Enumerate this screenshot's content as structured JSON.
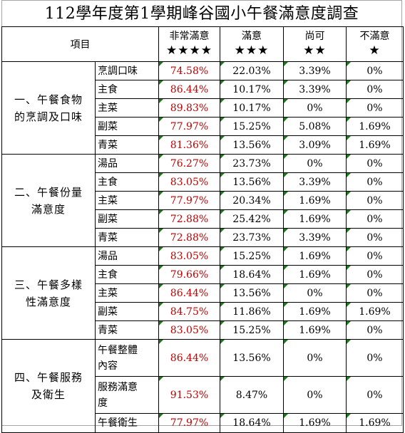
{
  "title": "112學年度第1學期峰谷國小午餐滿意度調查",
  "header": {
    "item_label": "項目",
    "columns": [
      {
        "label": "非常滿意",
        "stars": "★★★★"
      },
      {
        "label": "滿意",
        "stars": "★★★"
      },
      {
        "label": "尚可",
        "stars": "★★"
      },
      {
        "label": "不滿意",
        "stars": "★"
      }
    ]
  },
  "colors": {
    "highlight_value": "#c00000",
    "comment_marker": "#1a7a1a"
  },
  "groups": [
    {
      "name_line1": "一、午餐食物",
      "name_line2": "的烹調及口味",
      "rows": [
        {
          "item": "烹調口味",
          "values": [
            "74.58%",
            "22.03%",
            "3.39%",
            "0%"
          ]
        },
        {
          "item": "主食",
          "values": [
            "86.44%",
            "10.17%",
            "3.39%",
            "0%"
          ]
        },
        {
          "item": "主菜",
          "values": [
            "89.83%",
            "10.17%",
            "0%",
            "0%"
          ]
        },
        {
          "item": "副菜",
          "values": [
            "77.97%",
            "15.25%",
            "5.08%",
            "1.69%"
          ]
        },
        {
          "item": "青菜",
          "values": [
            "81.36%",
            "13.56%",
            "3.09%",
            "1.69%"
          ]
        }
      ]
    },
    {
      "name_line1": "二、午餐份量",
      "name_line2": "滿意度",
      "rows": [
        {
          "item": "湯品",
          "values": [
            "76.27%",
            "23.73%",
            "0%",
            "0%"
          ]
        },
        {
          "item": "主食",
          "values": [
            "83.05%",
            "13.56%",
            "3.39%",
            "0%"
          ]
        },
        {
          "item": "主菜",
          "values": [
            "77.97%",
            "20.34%",
            "1.69%",
            "0%"
          ]
        },
        {
          "item": "副菜",
          "values": [
            "72.88%",
            "25.42%",
            "1.69%",
            "0%"
          ]
        },
        {
          "item": "青菜",
          "values": [
            "72.88%",
            "23.73%",
            "3.39%",
            "0%"
          ]
        }
      ]
    },
    {
      "name_line1": "三、午餐多樣",
      "name_line2": "性滿意度",
      "rows": [
        {
          "item": "湯品",
          "values": [
            "83.05%",
            "15.25%",
            "1.69%",
            "0%"
          ]
        },
        {
          "item": "主食",
          "values": [
            "79.66%",
            "18.64%",
            "1.69%",
            "0%"
          ]
        },
        {
          "item": "主菜",
          "values": [
            "86.44%",
            "13.56%",
            "0%",
            "0%"
          ]
        },
        {
          "item": "副菜",
          "values": [
            "84.75%",
            "11.86%",
            "1.69%",
            "1.69%"
          ]
        },
        {
          "item": "青菜",
          "values": [
            "83.05%",
            "15.25%",
            "1.69%",
            "0%"
          ]
        }
      ]
    },
    {
      "name_line1": "四、午餐服務",
      "name_line2": "及衛生",
      "rows": [
        {
          "item_line1": "午餐整體",
          "item_line2": "內容",
          "values": [
            "86.44%",
            "13.56%",
            "0%",
            "0%"
          ]
        },
        {
          "item_line1": "服務滿意",
          "item_line2": "度",
          "values": [
            "91.53%",
            "8.47%",
            "0%",
            "0%"
          ]
        },
        {
          "item": "午餐衛生",
          "values": [
            "77.97%",
            "18.64%",
            "1.69%",
            "1.69%"
          ]
        }
      ]
    }
  ]
}
